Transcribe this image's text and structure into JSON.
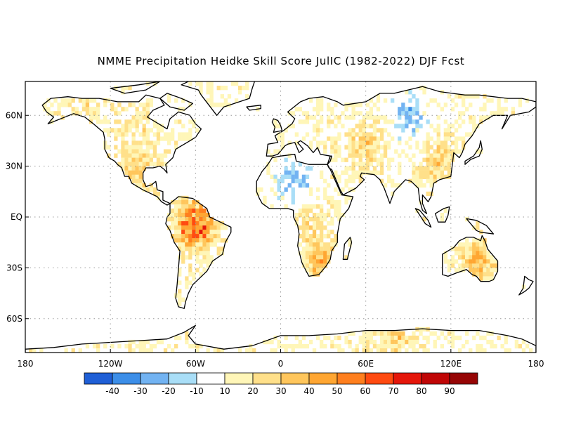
{
  "title": "NMME Precipitation Heidke Skill Score JulIC (1982-2022) DJF Fcst",
  "map": {
    "projection": "equirectangular",
    "lon_range": [
      -180,
      180
    ],
    "lat_range": [
      -80,
      80
    ],
    "grid": "dotted",
    "lat_labels": [
      {
        "lat": 60,
        "label": "60N"
      },
      {
        "lat": 30,
        "label": "30N"
      },
      {
        "lat": 0,
        "label": "EQ"
      },
      {
        "lat": -30,
        "label": "30S"
      },
      {
        "lat": -60,
        "label": "60S"
      }
    ],
    "lon_labels": [
      {
        "lon": -180,
        "label": "180"
      },
      {
        "lon": -120,
        "label": "120W"
      },
      {
        "lon": -60,
        "label": "60W"
      },
      {
        "lon": 0,
        "label": "0"
      },
      {
        "lon": 60,
        "label": "60E"
      },
      {
        "lon": 120,
        "label": "120E"
      },
      {
        "lon": 180,
        "label": "180"
      }
    ]
  },
  "colorbar": {
    "labels": [
      "-40",
      "-30",
      "-20",
      "-10",
      "10",
      "20",
      "30",
      "40",
      "50",
      "60",
      "70",
      "80",
      "90"
    ],
    "colors": [
      "#1f5fd6",
      "#3c8ee8",
      "#72b3f2",
      "#a9def7",
      "#ffffff",
      "#fff6b8",
      "#ffe08a",
      "#ffc65c",
      "#ffa632",
      "#ff7f1e",
      "#ff4a10",
      "#e5160a",
      "#c00606",
      "#960505"
    ]
  },
  "skill_regions": [
    {
      "lon": -60,
      "lat": -5,
      "level": 70
    },
    {
      "lon": -100,
      "lat": 25,
      "level": 30
    },
    {
      "lon": 30,
      "lat": -25,
      "level": 40
    },
    {
      "lon": 140,
      "lat": -25,
      "level": 40
    },
    {
      "lon": 110,
      "lat": 30,
      "level": 30
    },
    {
      "lon": 60,
      "lat": 40,
      "level": 30
    },
    {
      "lon": 20,
      "lat": 0,
      "level": 20
    },
    {
      "lon": -140,
      "lat": 70,
      "level": 20
    },
    {
      "lon": -100,
      "lat": 50,
      "level": 20
    },
    {
      "lon": 80,
      "lat": -72,
      "level": 30
    },
    {
      "lon": 10,
      "lat": 20,
      "level": -20
    },
    {
      "lon": 90,
      "lat": 60,
      "level": -20
    }
  ]
}
